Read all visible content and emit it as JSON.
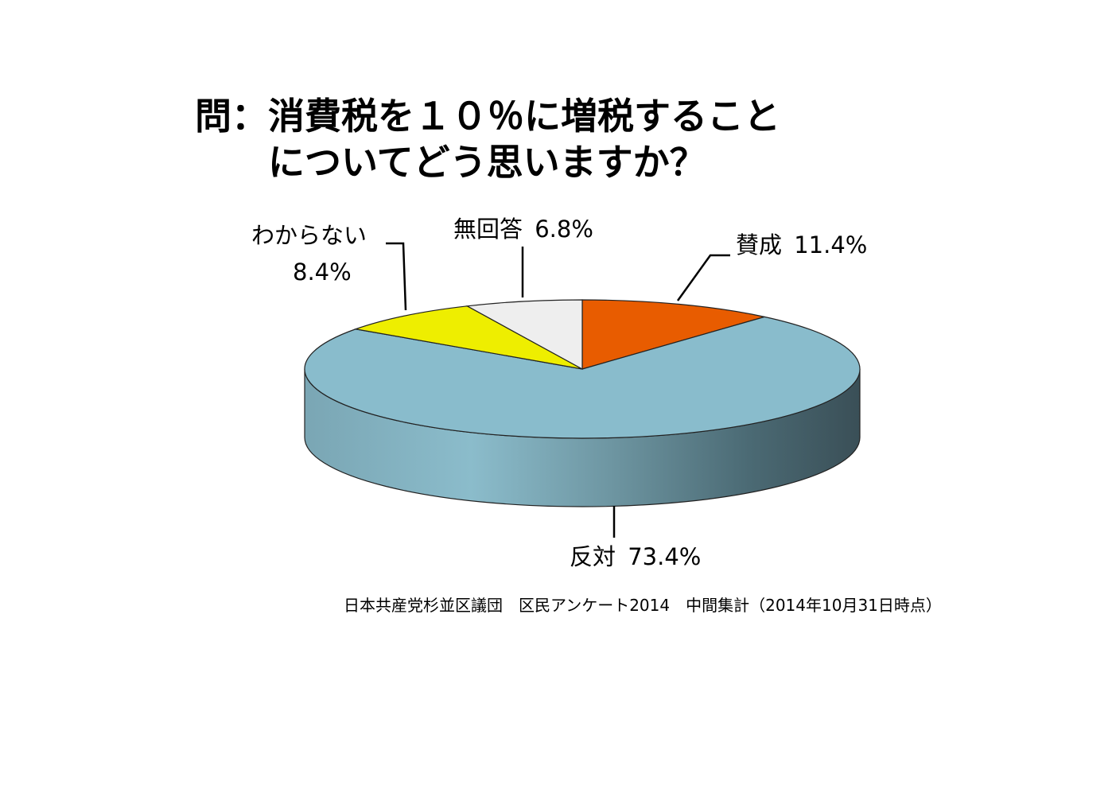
{
  "chart_data": {
    "type": "pie",
    "style": "3d",
    "title_lines": [
      "問：消費税を１０％に増税すること",
      "についてどう思いますか？"
    ],
    "slices": [
      {
        "name": "賛成",
        "value": 11.4,
        "label": "11.4%",
        "color": "#e85c00"
      },
      {
        "name": "反対",
        "value": 73.4,
        "label": "73.4%",
        "color": "#89bccc"
      },
      {
        "name": "わからない",
        "value": 8.4,
        "label": "8.4%",
        "color": "#eeee00"
      },
      {
        "name": "無回答",
        "value": 6.8,
        "label": "6.8%",
        "color": "#eeeeee"
      }
    ],
    "source": "日本共産党杉並区議団　区民アンケート2014　中間集計（2014年10月31日時点）"
  }
}
